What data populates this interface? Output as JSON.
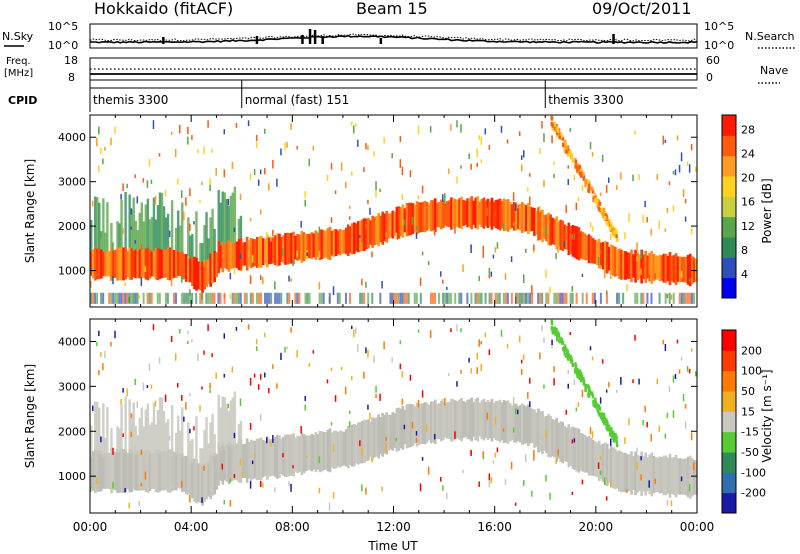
{
  "header": {
    "station": "Hokkaido (fitACF)",
    "beam": "Beam 15",
    "date": "09/Oct/2011"
  },
  "noise_panel": {
    "left_label": "N.Sky",
    "right_label": "N.Search",
    "ticks": [
      "10^5",
      "10^0"
    ]
  },
  "freq_panel": {
    "left_label_1": "Freq.",
    "left_label_2": "[MHz]",
    "right_label": "Nave",
    "left_ticks": [
      "18",
      "8"
    ],
    "right_ticks": [
      "60",
      "0"
    ]
  },
  "cpid": {
    "label": "CPID",
    "segments": [
      {
        "name": "themis 3300",
        "start_h": 0
      },
      {
        "name": "normal (fast) 151",
        "start_h": 6
      },
      {
        "name": "themis 3300",
        "start_h": 18
      }
    ]
  },
  "chart_data": [
    {
      "type": "heatmap",
      "title": "",
      "ylabel": "Slant Range [km]",
      "xlabel": "",
      "xlim_hours": [
        0,
        24
      ],
      "ylim": [
        180,
        4500
      ],
      "y_ticks": [
        1000,
        2000,
        3000,
        4000
      ],
      "colorbar": {
        "label": "Power [dB]",
        "ticks": [
          "4",
          "8",
          "12",
          "16",
          "20",
          "24",
          "28"
        ],
        "range": [
          0,
          31
        ],
        "colors": [
          "#0000ee",
          "#2f4fb8",
          "#2e8b57",
          "#5aa64a",
          "#c8d040",
          "#ffd21f",
          "#ff9b20",
          "#ff5a10",
          "#ff1a00"
        ]
      }
    },
    {
      "type": "heatmap",
      "title": "",
      "ylabel": "Slant Range [km]",
      "xlabel": "Time UT",
      "xlim_hours": [
        0,
        24
      ],
      "ylim": [
        180,
        4500
      ],
      "y_ticks": [
        1000,
        2000,
        3000,
        4000
      ],
      "x_tick_labels": [
        "00:00",
        "04:00",
        "08:00",
        "12:00",
        "16:00",
        "20:00",
        "00:00"
      ],
      "colorbar": {
        "label": "Velocity [m s⁻¹]",
        "ticks": [
          "200",
          "100",
          "50",
          "15",
          "-15",
          "-50",
          "-100",
          "-200"
        ],
        "colors": [
          "#1a1aa8",
          "#2f6fb0",
          "#2e8b57",
          "#55cc33",
          "#c8c8c0",
          "#f2b020",
          "#ff7a00",
          "#ff3a00",
          "#ff0000"
        ]
      }
    }
  ]
}
